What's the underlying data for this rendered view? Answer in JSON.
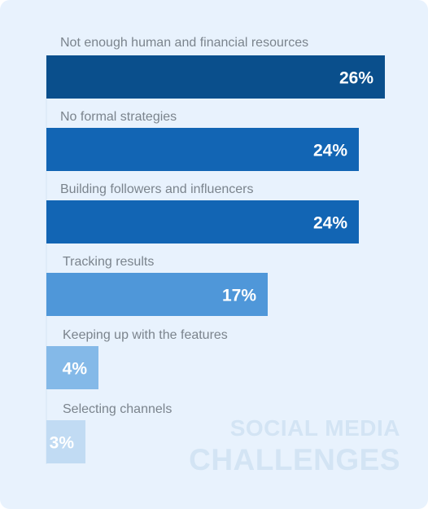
{
  "watermark": {
    "line1": "SOCIAL MEDIA",
    "line2": "CHALLENGES"
  },
  "chart_data": {
    "type": "bar",
    "orientation": "horizontal",
    "categories": [
      "Not enough human and financial resources",
      "No formal strategies",
      "Building followers and influencers",
      "Tracking results",
      "Keeping up with the features",
      "Selecting channels"
    ],
    "values": [
      26,
      24,
      24,
      17,
      4,
      3
    ],
    "value_labels": [
      "26%",
      "24%",
      "24%",
      "17%",
      "4%",
      "3%"
    ],
    "unit": "%",
    "colors": [
      "#0a4f8c",
      "#1265b4",
      "#1265b4",
      "#4f97d9",
      "#84b9e8",
      "#c1dbf3"
    ],
    "grid": false,
    "legend": "none"
  }
}
